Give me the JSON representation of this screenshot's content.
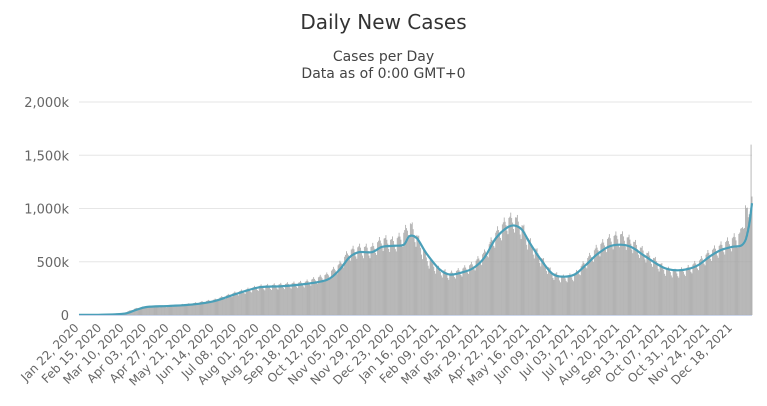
{
  "header": {
    "title": "Daily New Cases",
    "subtitle_line1": "Cases per Day",
    "subtitle_line2": "Data as of 0:00 GMT+0"
  },
  "colors": {
    "bars": "#a6a6a6",
    "moving_average": "#4a9fb8",
    "grid": "#e6e6e6",
    "axis_text": "#666666"
  },
  "chart_data": {
    "type": "bar",
    "title": "Daily New Cases",
    "subtitle": "Cases per Day\nData as of 0:00 GMT+0",
    "xlabel": "",
    "ylabel": "",
    "ylim": [
      0,
      2000000
    ],
    "y_ticks": [
      0,
      500000,
      1000000,
      1500000,
      2000000
    ],
    "y_tick_labels": [
      "0",
      "500k",
      "1,000k",
      "1,500k",
      "2,000k"
    ],
    "x_range": [
      "2020-01-22",
      "2022-01-08"
    ],
    "x_tick_labels": [
      "Jan 22, 2020",
      "Feb 15, 2020",
      "Mar 10, 2020",
      "Apr 03, 2020",
      "Apr 27, 2020",
      "May 21, 2020",
      "Jun 14, 2020",
      "Jul 08, 2020",
      "Aug 01, 2020",
      "Aug 25, 2020",
      "Sep 18, 2020",
      "Oct 12, 2020",
      "Nov 05, 2020",
      "Nov 29, 2020",
      "Dec 23, 2020",
      "Jan 16, 2021",
      "Feb 09, 2021",
      "Mar 05, 2021",
      "Mar 29, 2021",
      "Apr 22, 2021",
      "May 16, 2021",
      "Jun 09, 2021",
      "Jul 03, 2021",
      "Jul 27, 2021",
      "Aug 20, 2021",
      "Sep 13, 2021",
      "Oct 07, 2021",
      "Oct 31, 2021",
      "Nov 24, 2021",
      "Dec 18, 2021"
    ],
    "grid": true,
    "legend": "none",
    "series": [
      {
        "type": "bar",
        "x": [
          "2020-01-22",
          "2020-02-15",
          "2020-03-10",
          "2020-03-22",
          "2020-04-03",
          "2020-04-27",
          "2020-05-21",
          "2020-06-14",
          "2020-07-08",
          "2020-08-01",
          "2020-08-25",
          "2020-09-18",
          "2020-10-12",
          "2020-10-25",
          "2020-11-05",
          "2020-11-15",
          "2020-11-29",
          "2020-12-10",
          "2020-12-23",
          "2021-01-02",
          "2021-01-08",
          "2021-01-16",
          "2021-01-26",
          "2021-02-09",
          "2021-02-20",
          "2021-03-05",
          "2021-03-17",
          "2021-03-29",
          "2021-04-10",
          "2021-04-22",
          "2021-04-30",
          "2021-05-08",
          "2021-05-16",
          "2021-05-28",
          "2021-06-09",
          "2021-06-20",
          "2021-07-03",
          "2021-07-15",
          "2021-07-27",
          "2021-08-08",
          "2021-08-20",
          "2021-09-01",
          "2021-09-13",
          "2021-09-25",
          "2021-10-07",
          "2021-10-19",
          "2021-10-31",
          "2021-11-12",
          "2021-11-24",
          "2021-12-06",
          "2021-12-18",
          "2021-12-27",
          "2022-01-01",
          "2022-01-04",
          "2022-01-06",
          "2022-01-07",
          "2022-01-08"
        ],
        "values": [
          1000,
          3000,
          20000,
          60000,
          80000,
          85000,
          105000,
          140000,
          210000,
          265000,
          280000,
          300000,
          370000,
          460000,
          590000,
          620000,
          620000,
          700000,
          680000,
          750000,
          850000,
          730000,
          530000,
          420000,
          380000,
          420000,
          470000,
          570000,
          750000,
          880000,
          900000,
          820000,
          680000,
          530000,
          390000,
          350000,
          370000,
          500000,
          620000,
          700000,
          740000,
          690000,
          600000,
          520000,
          430000,
          400000,
          430000,
          490000,
          580000,
          640000,
          700000,
          750000,
          1000000,
          900000,
          1050000,
          1600000,
          1080000
        ]
      },
      {
        "type": "line",
        "x": [
          "2020-01-22",
          "2020-02-15",
          "2020-03-10",
          "2020-03-22",
          "2020-04-03",
          "2020-04-27",
          "2020-05-21",
          "2020-06-14",
          "2020-07-08",
          "2020-08-01",
          "2020-08-25",
          "2020-09-18",
          "2020-10-12",
          "2020-10-25",
          "2020-11-05",
          "2020-11-15",
          "2020-11-29",
          "2020-12-10",
          "2020-12-23",
          "2021-01-02",
          "2021-01-08",
          "2021-01-16",
          "2021-01-26",
          "2021-02-09",
          "2021-02-20",
          "2021-03-05",
          "2021-03-17",
          "2021-03-29",
          "2021-04-10",
          "2021-04-22",
          "2021-04-30",
          "2021-05-08",
          "2021-05-16",
          "2021-05-28",
          "2021-06-09",
          "2021-06-20",
          "2021-07-03",
          "2021-07-15",
          "2021-07-27",
          "2021-08-08",
          "2021-08-20",
          "2021-09-01",
          "2021-09-13",
          "2021-09-25",
          "2021-10-07",
          "2021-10-19",
          "2021-10-31",
          "2021-11-12",
          "2021-11-24",
          "2021-12-06",
          "2021-12-18",
          "2021-12-27",
          "2022-01-01",
          "2022-01-04",
          "2022-01-06",
          "2022-01-07",
          "2022-01-08"
        ],
        "values": [
          1000,
          3000,
          12000,
          45000,
          75000,
          85000,
          98000,
          130000,
          200000,
          260000,
          270000,
          290000,
          330000,
          420000,
          540000,
          590000,
          590000,
          640000,
          650000,
          660000,
          740000,
          720000,
          580000,
          430000,
          380000,
          400000,
          440000,
          540000,
          720000,
          820000,
          840000,
          800000,
          680000,
          520000,
          390000,
          360000,
          380000,
          470000,
          570000,
          640000,
          660000,
          640000,
          570000,
          500000,
          440000,
          420000,
          430000,
          470000,
          550000,
          610000,
          640000,
          650000,
          700000,
          800000,
          900000,
          980000,
          1050000
        ]
      }
    ]
  }
}
